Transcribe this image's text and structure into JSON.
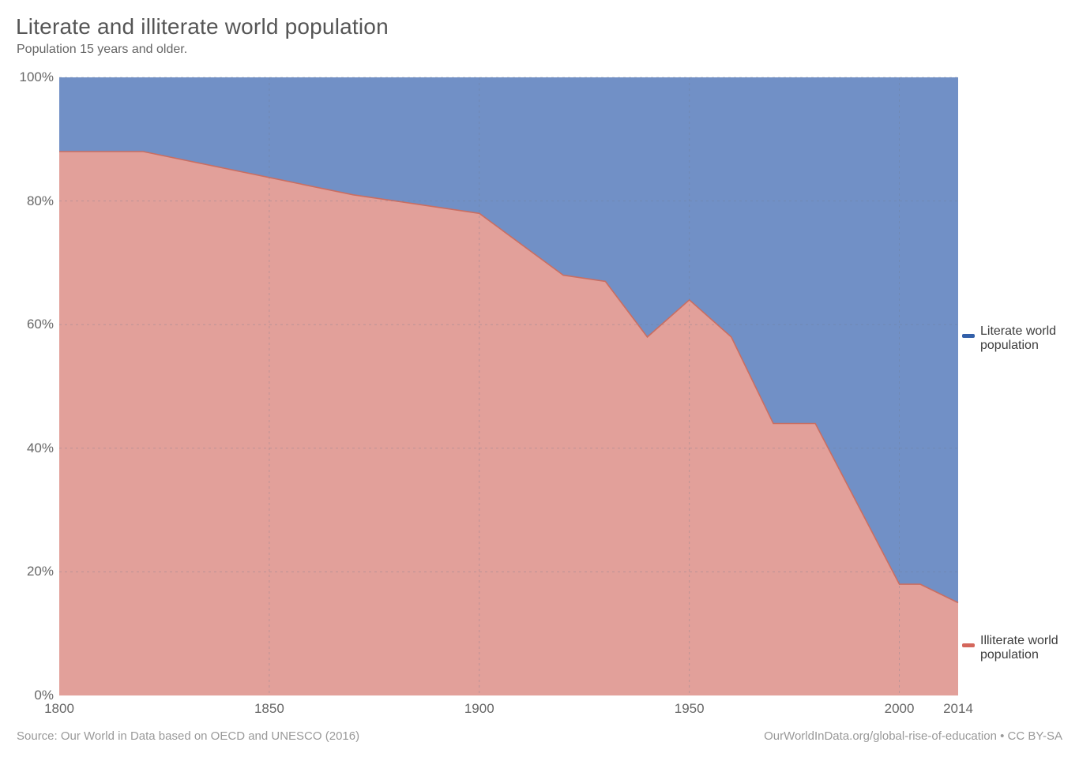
{
  "header": {
    "title": "Literate and illiterate world population",
    "subtitle": "Population 15 years and older."
  },
  "footer": {
    "source": "Source: Our World in Data based on OECD and UNESCO (2016)",
    "attribution": "OurWorldInData.org/global-rise-of-education • CC BY-SA"
  },
  "colors": {
    "background": "#ffffff",
    "literate_area": "#7190c6",
    "illiterate_area": "#e2a09a",
    "illiterate_line": "#c96e62",
    "literate_legend": "#3360a9",
    "illiterate_legend": "#d4675c",
    "gridline": "#6e7a8e",
    "title_text": "#555555",
    "tick_text": "#666666",
    "footer_text": "#999999"
  },
  "chart_data": {
    "type": "area",
    "stacked": true,
    "title": "Literate and illiterate world population",
    "subtitle": "Population 15 years and older.",
    "xlabel": "",
    "ylabel": "",
    "xlim": [
      1800,
      2014
    ],
    "ylim": [
      0,
      100
    ],
    "grid": "dashed",
    "legend_position": "right",
    "x": [
      1800,
      1820,
      1870,
      1890,
      1900,
      1920,
      1930,
      1940,
      1950,
      1960,
      1970,
      1980,
      2000,
      2005,
      2014
    ],
    "series": [
      {
        "name": "Literate world population",
        "color": "#3360a9",
        "area_color": "#7190c6",
        "unit": "%",
        "values": [
          12,
          12,
          19,
          21,
          22,
          32,
          33,
          42,
          36,
          42,
          56,
          56,
          82,
          82,
          85
        ]
      },
      {
        "name": "Illiterate world population",
        "color": "#d4675c",
        "area_color": "#e2a09a",
        "unit": "%",
        "values": [
          88,
          88,
          81,
          79,
          78,
          68,
          67,
          58,
          64,
          58,
          44,
          44,
          18,
          18,
          15
        ]
      }
    ],
    "xticks": [
      {
        "v": 1800,
        "label": "1800",
        "grid": false
      },
      {
        "v": 1850,
        "label": "1850",
        "grid": true
      },
      {
        "v": 1900,
        "label": "1900",
        "grid": true
      },
      {
        "v": 1950,
        "label": "1950",
        "grid": true
      },
      {
        "v": 2000,
        "label": "2000",
        "grid": true
      },
      {
        "v": 2014,
        "label": "2014",
        "grid": false
      }
    ],
    "yticks": [
      {
        "v": 0,
        "label": "0%",
        "grid": false
      },
      {
        "v": 20,
        "label": "20%",
        "grid": true
      },
      {
        "v": 40,
        "label": "40%",
        "grid": true
      },
      {
        "v": 60,
        "label": "60%",
        "grid": true
      },
      {
        "v": 80,
        "label": "80%",
        "grid": true
      },
      {
        "v": 100,
        "label": "100%",
        "grid": true
      }
    ]
  }
}
